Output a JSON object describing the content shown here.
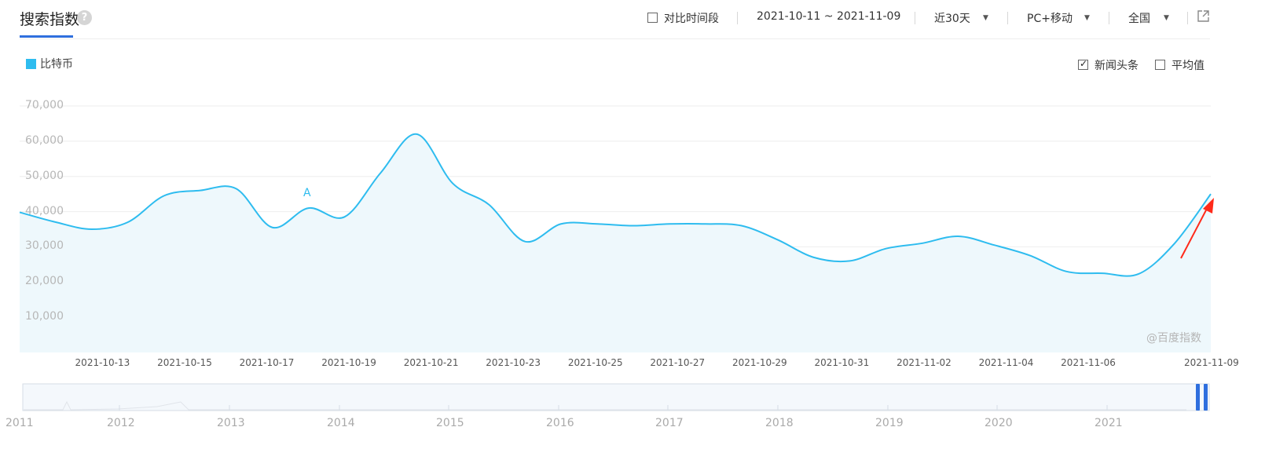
{
  "header": {
    "title": "搜索指数",
    "help_glyph": "?",
    "compare_label": "对比时间段",
    "date_range": "2021-10-11 ~ 2021-11-09",
    "period": "近30天",
    "device": "PC+移动",
    "region": "全国"
  },
  "legend": {
    "label": "比特币",
    "color": "#2ebcef"
  },
  "options": {
    "news_label": "新闻头条",
    "news_checked": true,
    "avg_label": "平均值",
    "avg_checked": false
  },
  "watermark": "@百度指数",
  "annotation": {
    "label": "A",
    "date": "2021-10-19"
  },
  "slider": {
    "years": [
      "2011",
      "2012",
      "2013",
      "2014",
      "2015",
      "2016",
      "2017",
      "2018",
      "2019",
      "2020",
      "2021"
    ]
  },
  "chart_data": {
    "type": "area",
    "series": [
      {
        "name": "比特币",
        "values": [
          39800,
          37000,
          35000,
          37000,
          44500,
          46000,
          46500,
          35500,
          41000,
          38500,
          51000,
          62000,
          48000,
          42000,
          31500,
          36500,
          36500,
          36000,
          36500,
          36500,
          36000,
          32000,
          27000,
          26000,
          29500,
          31000,
          33000,
          30500,
          27500,
          23000,
          22500,
          22300,
          31000,
          45000
        ]
      }
    ],
    "x_tick_labels": [
      "2021-10-13",
      "2021-10-15",
      "2021-10-17",
      "2021-10-19",
      "2021-10-21",
      "2021-10-23",
      "2021-10-25",
      "2021-10-27",
      "2021-10-29",
      "2021-10-31",
      "2021-11-02",
      "2021-11-04",
      "2021-11-06",
      "2021-11-09"
    ],
    "y_ticks": [
      "10,000",
      "20,000",
      "30,000",
      "40,000",
      "50,000",
      "60,000",
      "70,000"
    ],
    "ylim": [
      0,
      70000
    ],
    "grid": true,
    "colors": {
      "line": "#2ebcef",
      "fill": "#eef8fc",
      "arrow": "#ff2a1a"
    }
  }
}
